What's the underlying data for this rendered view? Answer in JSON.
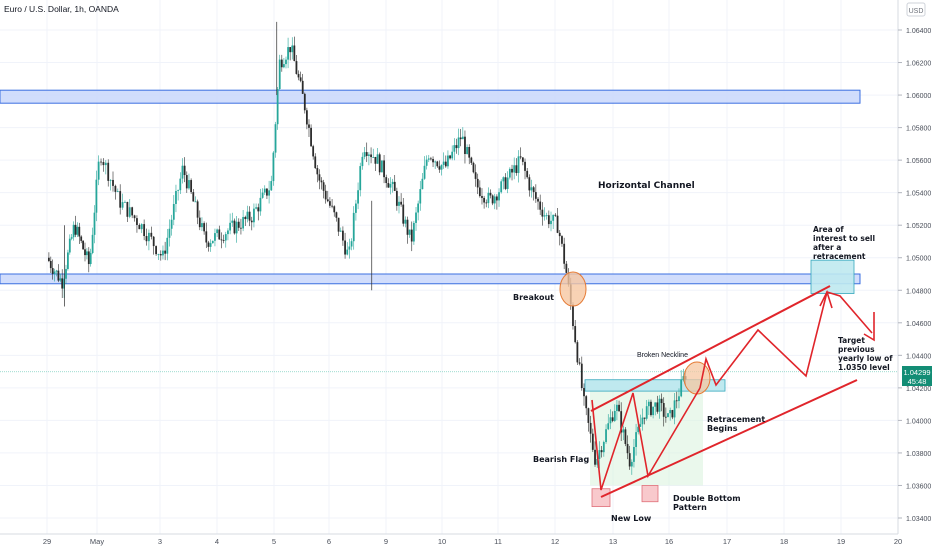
{
  "chart_data": {
    "type": "candlestick",
    "title": "Euro / U.S. Dollar, 1h, OANDA",
    "currency": "USD",
    "x_labels": [
      "29",
      "May",
      "3",
      "4",
      "5",
      "6",
      "9",
      "10",
      "11",
      "12",
      "13",
      "16",
      "17",
      "18",
      "19",
      "20"
    ],
    "y_ticks": [
      "1.06400",
      "1.06200",
      "1.06000",
      "1.05800",
      "1.05600",
      "1.05400",
      "1.05200",
      "1.05000",
      "1.04800",
      "1.04600",
      "1.04400",
      "1.04200",
      "1.04000",
      "1.03800",
      "1.03600",
      "1.03400"
    ],
    "ylim": [
      1.0335,
      1.0652
    ],
    "current_price": "1.04299",
    "countdown": "45:48",
    "price_path": [
      {
        "d": 0.0,
        "p": 1.05
      },
      {
        "d": 0.3,
        "p": 1.0485
      },
      {
        "d": 0.55,
        "p": 1.052
      },
      {
        "d": 0.85,
        "p": 1.0495
      },
      {
        "d": 1.05,
        "p": 1.0565
      },
      {
        "d": 1.35,
        "p": 1.0535
      },
      {
        "d": 1.7,
        "p": 1.052
      },
      {
        "d": 2.05,
        "p": 1.05
      },
      {
        "d": 2.4,
        "p": 1.0555
      },
      {
        "d": 2.8,
        "p": 1.051
      },
      {
        "d": 3.1,
        "p": 1.0515
      },
      {
        "d": 3.6,
        "p": 1.0525
      },
      {
        "d": 3.95,
        "p": 1.0545
      },
      {
        "d": 4.1,
        "p": 1.062
      },
      {
        "d": 4.3,
        "p": 1.063
      },
      {
        "d": 4.55,
        "p": 1.0595
      },
      {
        "d": 4.8,
        "p": 1.055
      },
      {
        "d": 5.1,
        "p": 1.0525
      },
      {
        "d": 5.35,
        "p": 1.05
      },
      {
        "d": 5.6,
        "p": 1.057
      },
      {
        "d": 5.85,
        "p": 1.056
      },
      {
        "d": 6.15,
        "p": 1.054
      },
      {
        "d": 6.45,
        "p": 1.051
      },
      {
        "d": 6.75,
        "p": 1.0565
      },
      {
        "d": 7.05,
        "p": 1.0555
      },
      {
        "d": 7.35,
        "p": 1.0575
      },
      {
        "d": 7.6,
        "p": 1.0545
      },
      {
        "d": 7.85,
        "p": 1.0535
      },
      {
        "d": 8.1,
        "p": 1.0545
      },
      {
        "d": 8.4,
        "p": 1.056
      },
      {
        "d": 8.6,
        "p": 1.054
      },
      {
        "d": 8.85,
        "p": 1.0525
      },
      {
        "d": 9.05,
        "p": 1.052
      },
      {
        "d": 9.2,
        "p": 1.049
      },
      {
        "d": 9.35,
        "p": 1.045
      },
      {
        "d": 9.5,
        "p": 1.041
      },
      {
        "d": 9.7,
        "p": 1.0375
      },
      {
        "d": 9.85,
        "p": 1.039
      },
      {
        "d": 10.05,
        "p": 1.041
      },
      {
        "d": 10.3,
        "p": 1.0375
      },
      {
        "d": 10.55,
        "p": 1.0405
      },
      {
        "d": 10.8,
        "p": 1.041
      },
      {
        "d": 11.0,
        "p": 1.04
      },
      {
        "d": 11.2,
        "p": 1.042
      },
      {
        "d": 11.3,
        "p": 1.043
      }
    ],
    "horizontal_zones": [
      {
        "low": 1.0595,
        "high": 1.0603
      },
      {
        "low": 1.0484,
        "high": 1.049
      }
    ],
    "annotations": {
      "horizontal_channel": "Horizontal Channel",
      "area_of_interest": [
        "Area of",
        "interest to sell",
        "after a",
        "retracement"
      ],
      "breakout": "Breakout",
      "broken_neckline": "Broken Neckline",
      "target": [
        "Target",
        "previous",
        "yearly low of",
        "1.0350 level"
      ],
      "retracement_begins": [
        "Retracement",
        "Begins"
      ],
      "bearish_flag": "Bearish Flag",
      "double_bottom": [
        "Double Bottom",
        "Pattern"
      ],
      "new_low": "New Low"
    },
    "colors": {
      "up": "#26a69a",
      "down": "#ef5350",
      "candle_dark": "#2b2b2b",
      "zone_fill": "#c9d7fb",
      "zone_stroke": "#3b6fe0",
      "trend": "#e0252b",
      "price_tag": "#138d75",
      "circle_fill": "#f6c7a1",
      "circle_stroke": "#e57a34"
    }
  }
}
